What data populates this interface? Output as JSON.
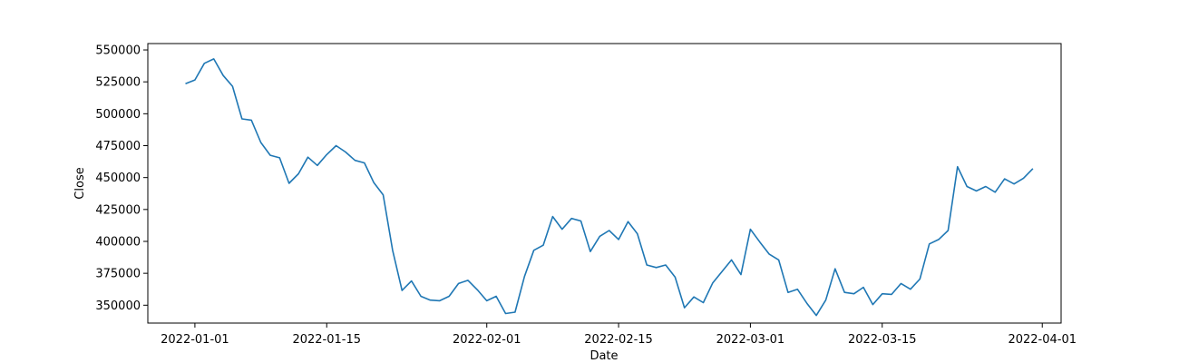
{
  "chart_data": {
    "type": "line",
    "xlabel": "Date",
    "ylabel": "Close",
    "xlim": [
      "2021-12-27",
      "2022-04-03"
    ],
    "ylim": [
      336000,
      555000
    ],
    "grid": false,
    "x_ticks": [
      "2022-01-01",
      "2022-01-15",
      "2022-02-01",
      "2022-02-15",
      "2022-03-01",
      "2022-03-15",
      "2022-04-01"
    ],
    "y_ticks": [
      350000,
      375000,
      400000,
      425000,
      450000,
      475000,
      500000,
      525000,
      550000
    ],
    "series": [
      {
        "color": "#1f77b4",
        "x": [
          "2021-12-31",
          "2022-01-01",
          "2022-01-02",
          "2022-01-03",
          "2022-01-04",
          "2022-01-05",
          "2022-01-06",
          "2022-01-07",
          "2022-01-08",
          "2022-01-09",
          "2022-01-10",
          "2022-01-11",
          "2022-01-12",
          "2022-01-13",
          "2022-01-14",
          "2022-01-15",
          "2022-01-16",
          "2022-01-17",
          "2022-01-18",
          "2022-01-19",
          "2022-01-20",
          "2022-01-21",
          "2022-01-22",
          "2022-01-23",
          "2022-01-24",
          "2022-01-25",
          "2022-01-26",
          "2022-01-27",
          "2022-01-28",
          "2022-01-29",
          "2022-01-30",
          "2022-01-31",
          "2022-02-01",
          "2022-02-02",
          "2022-02-03",
          "2022-02-04",
          "2022-02-05",
          "2022-02-06",
          "2022-02-07",
          "2022-02-08",
          "2022-02-09",
          "2022-02-10",
          "2022-02-11",
          "2022-02-12",
          "2022-02-13",
          "2022-02-14",
          "2022-02-15",
          "2022-02-16",
          "2022-02-17",
          "2022-02-18",
          "2022-02-19",
          "2022-02-20",
          "2022-02-21",
          "2022-02-22",
          "2022-02-23",
          "2022-02-24",
          "2022-02-25",
          "2022-02-26",
          "2022-02-27",
          "2022-02-28",
          "2022-03-01",
          "2022-03-02",
          "2022-03-03",
          "2022-03-04",
          "2022-03-05",
          "2022-03-06",
          "2022-03-07",
          "2022-03-08",
          "2022-03-09",
          "2022-03-10",
          "2022-03-11",
          "2022-03-12",
          "2022-03-13",
          "2022-03-14",
          "2022-03-15",
          "2022-03-16",
          "2022-03-17",
          "2022-03-18",
          "2022-03-19",
          "2022-03-20",
          "2022-03-21",
          "2022-03-22",
          "2022-03-23",
          "2022-03-24",
          "2022-03-25",
          "2022-03-26",
          "2022-03-27",
          "2022-03-28",
          "2022-03-29",
          "2022-03-30",
          "2022-03-31"
        ],
        "y": [
          523500,
          526500,
          539500,
          543000,
          530000,
          521500,
          496000,
          495000,
          477500,
          467500,
          465500,
          445500,
          453000,
          466000,
          459500,
          468000,
          475000,
          470000,
          463500,
          461500,
          446000,
          436500,
          393000,
          361500,
          369000,
          357000,
          354000,
          353500,
          357000,
          367000,
          369500,
          362000,
          353500,
          357000,
          343500,
          344500,
          372500,
          393000,
          397000,
          419500,
          409500,
          418000,
          416000,
          392000,
          404000,
          408500,
          401500,
          415500,
          406000,
          381500,
          379500,
          381500,
          372000,
          348000,
          356500,
          352000,
          367500,
          376500,
          385500,
          374000,
          409500,
          399500,
          390000,
          385500,
          360000,
          362500,
          351500,
          342000,
          354000,
          378500,
          360000,
          359000,
          364000,
          350500,
          359000,
          358500,
          367000,
          362500,
          370500,
          398000,
          401500,
          408500,
          458500,
          443000,
          439500,
          443000,
          438500,
          449000,
          445000,
          449500,
          457000
        ]
      }
    ]
  }
}
